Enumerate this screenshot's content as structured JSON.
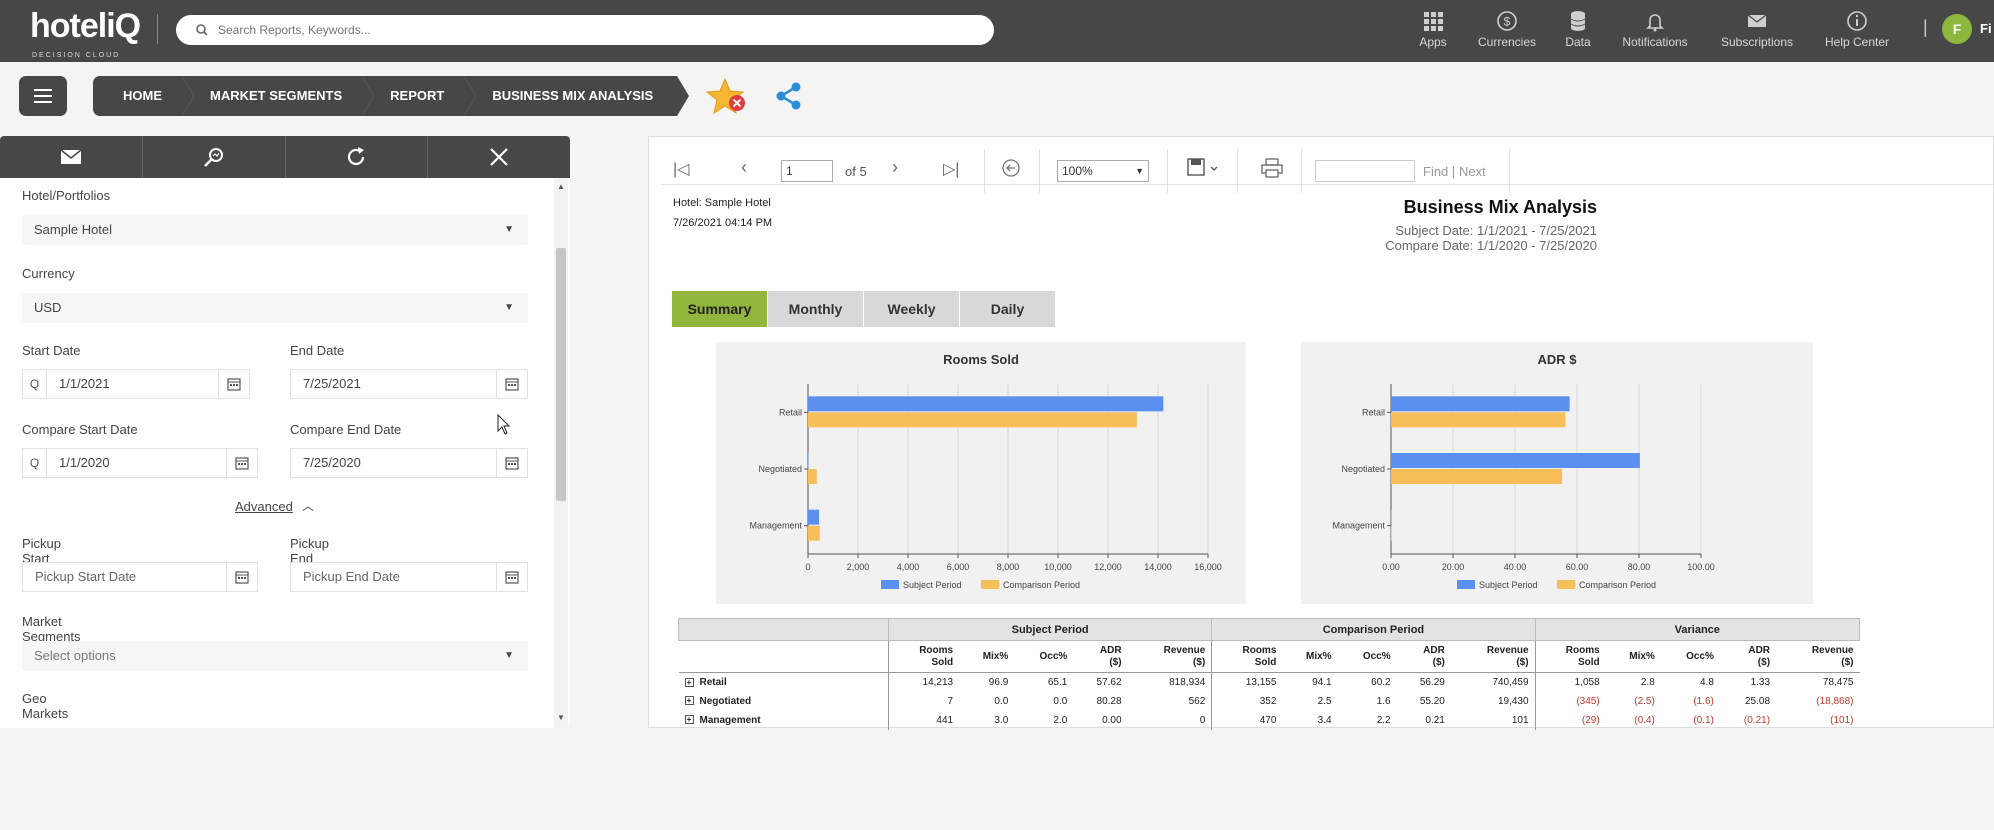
{
  "top": {
    "logo": "hoteliQ",
    "logo_sub": "DECISION CLOUD",
    "search_placeholder": "Search Reports, Keywords...",
    "nav": [
      {
        "label": "Apps",
        "icon": "apps-grid-icon"
      },
      {
        "label": "Currencies",
        "icon": "currency-icon"
      },
      {
        "label": "Data",
        "icon": "database-icon"
      },
      {
        "label": "Notifications",
        "icon": "bell-icon"
      },
      {
        "label": "Subscriptions",
        "icon": "envelope-icon"
      },
      {
        "label": "Help Center",
        "icon": "info-icon"
      }
    ],
    "avatar": "F",
    "user_text": "Fi"
  },
  "breadcrumb": [
    "HOME",
    "MARKET SEGMENTS",
    "REPORT",
    "BUSINESS MIX ANALYSIS"
  ],
  "filters": {
    "hotel_label": "Hotel/Portfolios",
    "hotel_value": "Sample Hotel",
    "currency_label": "Currency",
    "currency_value": "USD",
    "start_label": "Start Date",
    "start_value": "1/1/2021",
    "end_label": "End Date",
    "end_value": "7/25/2021",
    "cstart_label": "Compare Start Date",
    "cstart_value": "1/1/2020",
    "cend_label": "Compare End Date",
    "cend_value": "7/25/2020",
    "advanced": "Advanced",
    "pstart_label": "Pickup Start Date",
    "pstart_placeholder": "Pickup Start Date",
    "pend_label": "Pickup End Date",
    "pend_placeholder": "Pickup End Date",
    "ms_label": "Market Segments",
    "ms_placeholder": "Select options",
    "geo_label": "Geo Markets",
    "q": "Q"
  },
  "viewer": {
    "page": "1",
    "of": "of 5",
    "zoom": "100%",
    "find": "Find",
    "sep": "|",
    "next": "Next"
  },
  "report": {
    "hotel": "Hotel: Sample Hotel",
    "run_date": "7/26/2021 04:14 PM",
    "title": "Business Mix Analysis",
    "subject": "Subject Date: 1/1/2021 - 7/25/2021",
    "compare": "Compare Date: 1/1/2020 - 7/25/2020",
    "tabs": [
      "Summary",
      "Monthly",
      "Weekly",
      "Daily"
    ],
    "table": {
      "groups": [
        "Subject Period",
        "Comparison Period",
        "Variance"
      ],
      "cols": [
        [
          "Rooms",
          "Sold"
        ],
        [
          "Mix%",
          ""
        ],
        [
          "Occ%",
          ""
        ],
        [
          "ADR",
          "($)"
        ],
        [
          "Revenue",
          "($)"
        ]
      ],
      "rows": [
        {
          "name": "Retail",
          "cells": [
            "14,213",
            "96.9",
            "65.1",
            "57.62",
            "818,934",
            "13,155",
            "94.1",
            "60.2",
            "56.29",
            "740,459",
            "1,058",
            "2.8",
            "4.8",
            "1.33",
            "78,475"
          ]
        },
        {
          "name": "Negotiated",
          "cells": [
            "7",
            "0.0",
            "0.0",
            "80.28",
            "562",
            "352",
            "2.5",
            "1.6",
            "55.20",
            "19,430",
            "(345)",
            "(2.5)",
            "(1.6)",
            "25.08",
            "(18,868)"
          ]
        },
        {
          "name": "Management",
          "cells": [
            "441",
            "3.0",
            "2.0",
            "0.00",
            "0",
            "470",
            "3.4",
            "2.2",
            "0.21",
            "101",
            "(29)",
            "(0.4)",
            "(0.1)",
            "(0.21)",
            "(101)"
          ]
        }
      ]
    }
  },
  "chart_data": [
    {
      "type": "bar",
      "orientation": "horizontal",
      "title": "Rooms Sold",
      "categories": [
        "Retail",
        "Negotiated",
        "Management"
      ],
      "series": [
        {
          "name": "Subject Period",
          "values": [
            14213,
            7,
            441
          ],
          "color": "#5b8ff0"
        },
        {
          "name": "Comparison Period",
          "values": [
            13155,
            352,
            470
          ],
          "color": "#f7be5a"
        }
      ],
      "xlim": [
        0,
        16000
      ],
      "xticks": [
        "0",
        "2,000",
        "4,000",
        "6,000",
        "8,000",
        "10,000",
        "12,000",
        "14,000",
        "16,000"
      ],
      "grid": true,
      "legend": "bottom"
    },
    {
      "type": "bar",
      "orientation": "horizontal",
      "title": "ADR $",
      "categories": [
        "Retail",
        "Negotiated",
        "Management"
      ],
      "series": [
        {
          "name": "Subject Period",
          "values": [
            57.62,
            80.28,
            0
          ],
          "color": "#5b8ff0"
        },
        {
          "name": "Comparison Period",
          "values": [
            56.29,
            55.2,
            0.21
          ],
          "color": "#f7be5a"
        }
      ],
      "xlim": [
        0,
        100
      ],
      "xticks": [
        "0.00",
        "20.00",
        "40.00",
        "60.00",
        "80.00",
        "100.00"
      ],
      "grid": true,
      "legend": "bottom"
    }
  ]
}
